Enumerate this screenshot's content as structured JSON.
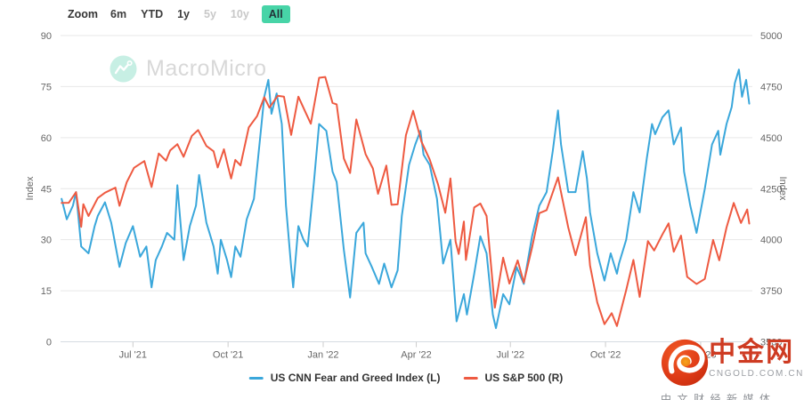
{
  "toolbar": {
    "zoom_label": "Zoom",
    "buttons": [
      {
        "label": "6m",
        "state": "normal"
      },
      {
        "label": "YTD",
        "state": "normal"
      },
      {
        "label": "1y",
        "state": "normal"
      },
      {
        "label": "5y",
        "state": "disabled"
      },
      {
        "label": "10y",
        "state": "disabled"
      },
      {
        "label": "All",
        "state": "active"
      }
    ]
  },
  "watermark": {
    "brand": "MacroMicro"
  },
  "logo": {
    "title": "中金网",
    "domain": "CNGOLD.COM.CN",
    "tagline": "中文财经新媒体"
  },
  "colors": {
    "accent_teal": "#47d4a7",
    "grid": "#e7e7e7",
    "axis_line": "#d6dbe2",
    "tick": "#cccccc",
    "label": "#666666",
    "watermark_icon": "#c7efe4",
    "watermark_text": "#d8d8d8",
    "logo_red": "#ce3b22"
  },
  "chart_data": {
    "type": "line",
    "x_range": [
      "2021-04-22",
      "2023-02-20"
    ],
    "x_ticks": [
      {
        "date": "2021-07-01",
        "label": "Jul '21"
      },
      {
        "date": "2021-10-01",
        "label": "Oct '21"
      },
      {
        "date": "2022-01-01",
        "label": "Jan '22"
      },
      {
        "date": "2022-04-01",
        "label": "Apr '22"
      },
      {
        "date": "2022-07-01",
        "label": "Jul '22"
      },
      {
        "date": "2022-10-01",
        "label": "Oct '22"
      },
      {
        "date": "2023-01-01",
        "label": "Jan '23"
      }
    ],
    "y_left": {
      "title": "Index",
      "min": 0,
      "max": 90,
      "ticks": [
        0,
        15,
        30,
        45,
        60,
        75,
        90
      ]
    },
    "y_right": {
      "title": "Index",
      "min": 3500,
      "max": 5000,
      "ticks": [
        3500,
        3750,
        4000,
        4250,
        4500,
        4750,
        5000
      ]
    },
    "grid_on": true,
    "legend_position": "bottom",
    "series": [
      {
        "name": "US CNN Fear and Greed Index (L)",
        "axis": "left",
        "color": "#3aa7db",
        "dates": [
          "2021-04-23",
          "2021-04-28",
          "2021-05-04",
          "2021-05-07",
          "2021-05-12",
          "2021-05-19",
          "2021-05-25",
          "2021-05-28",
          "2021-06-04",
          "2021-06-10",
          "2021-06-18",
          "2021-06-24",
          "2021-07-01",
          "2021-07-08",
          "2021-07-14",
          "2021-07-19",
          "2021-07-23",
          "2021-07-29",
          "2021-08-03",
          "2021-08-10",
          "2021-08-13",
          "2021-08-19",
          "2021-08-25",
          "2021-08-31",
          "2021-09-03",
          "2021-09-10",
          "2021-09-17",
          "2021-09-21",
          "2021-09-24",
          "2021-09-30",
          "2021-10-04",
          "2021-10-08",
          "2021-10-13",
          "2021-10-19",
          "2021-10-26",
          "2021-11-01",
          "2021-11-05",
          "2021-11-09",
          "2021-11-12",
          "2021-11-17",
          "2021-11-22",
          "2021-11-26",
          "2021-12-01",
          "2021-12-03",
          "2021-12-08",
          "2021-12-13",
          "2021-12-17",
          "2021-12-23",
          "2021-12-28",
          "2022-01-04",
          "2022-01-10",
          "2022-01-14",
          "2022-01-21",
          "2022-01-27",
          "2022-02-02",
          "2022-02-09",
          "2022-02-11",
          "2022-02-17",
          "2022-02-24",
          "2022-03-01",
          "2022-03-08",
          "2022-03-14",
          "2022-03-18",
          "2022-03-25",
          "2022-03-31",
          "2022-04-05",
          "2022-04-08",
          "2022-04-14",
          "2022-04-21",
          "2022-04-27",
          "2022-05-04",
          "2022-05-10",
          "2022-05-17",
          "2022-05-20",
          "2022-05-27",
          "2022-06-02",
          "2022-06-08",
          "2022-06-14",
          "2022-06-17",
          "2022-06-24",
          "2022-06-30",
          "2022-07-07",
          "2022-07-14",
          "2022-07-22",
          "2022-07-29",
          "2022-08-05",
          "2022-08-11",
          "2022-08-16",
          "2022-08-19",
          "2022-08-26",
          "2022-09-02",
          "2022-09-09",
          "2022-09-13",
          "2022-09-16",
          "2022-09-23",
          "2022-09-30",
          "2022-10-06",
          "2022-10-12",
          "2022-10-14",
          "2022-10-21",
          "2022-10-28",
          "2022-11-03",
          "2022-11-10",
          "2022-11-15",
          "2022-11-18",
          "2022-11-25",
          "2022-12-01",
          "2022-12-06",
          "2022-12-13",
          "2022-12-16",
          "2022-12-22",
          "2022-12-28",
          "2023-01-05",
          "2023-01-12",
          "2023-01-18",
          "2023-01-20",
          "2023-01-26",
          "2023-01-31",
          "2023-02-03",
          "2023-02-07",
          "2023-02-10",
          "2023-02-14",
          "2023-02-17"
        ],
        "values": [
          42,
          36,
          40,
          44,
          28,
          26,
          34,
          37,
          41,
          35,
          22,
          29,
          34,
          25,
          28,
          16,
          24,
          28,
          32,
          30,
          46,
          24,
          34,
          40,
          49,
          35,
          28,
          20,
          30,
          24,
          19,
          28,
          25,
          36,
          42,
          60,
          72,
          77,
          67,
          73,
          64,
          40,
          22,
          16,
          34,
          30,
          28,
          47,
          64,
          62,
          50,
          47,
          27,
          13,
          32,
          35,
          26,
          22,
          17,
          23,
          16,
          21,
          37,
          52,
          58,
          62,
          55,
          52,
          42,
          23,
          30,
          6,
          14,
          8,
          20,
          31,
          26,
          8,
          4,
          14,
          11,
          22,
          17,
          31,
          40,
          44,
          56,
          68,
          58,
          44,
          44,
          56,
          48,
          38,
          26,
          18,
          26,
          20,
          23,
          30,
          44,
          38,
          54,
          64,
          61,
          66,
          68,
          58,
          63,
          50,
          40,
          32,
          45,
          58,
          62,
          55,
          64,
          69,
          76,
          80,
          72,
          77,
          70
        ]
      },
      {
        "name": "US S&P 500 (R)",
        "axis": "right",
        "color": "#ee5a41",
        "dates": [
          "2021-04-23",
          "2021-04-30",
          "2021-05-07",
          "2021-05-12",
          "2021-05-14",
          "2021-05-19",
          "2021-05-28",
          "2021-06-04",
          "2021-06-14",
          "2021-06-18",
          "2021-06-25",
          "2021-07-02",
          "2021-07-12",
          "2021-07-19",
          "2021-07-26",
          "2021-08-02",
          "2021-08-06",
          "2021-08-13",
          "2021-08-19",
          "2021-08-27",
          "2021-09-02",
          "2021-09-10",
          "2021-09-17",
          "2021-09-21",
          "2021-09-27",
          "2021-10-01",
          "2021-10-04",
          "2021-10-08",
          "2021-10-13",
          "2021-10-21",
          "2021-10-29",
          "2021-11-05",
          "2021-11-10",
          "2021-11-18",
          "2021-11-24",
          "2021-12-01",
          "2021-12-08",
          "2021-12-14",
          "2021-12-20",
          "2021-12-28",
          "2022-01-03",
          "2022-01-10",
          "2022-01-14",
          "2022-01-21",
          "2022-01-27",
          "2022-02-02",
          "2022-02-11",
          "2022-02-18",
          "2022-02-23",
          "2022-03-03",
          "2022-03-08",
          "2022-03-14",
          "2022-03-22",
          "2022-03-29",
          "2022-04-06",
          "2022-04-14",
          "2022-04-22",
          "2022-04-29",
          "2022-05-04",
          "2022-05-09",
          "2022-05-12",
          "2022-05-17",
          "2022-05-19",
          "2022-05-27",
          "2022-06-02",
          "2022-06-08",
          "2022-06-16",
          "2022-06-24",
          "2022-06-30",
          "2022-07-08",
          "2022-07-14",
          "2022-07-22",
          "2022-07-29",
          "2022-08-05",
          "2022-08-16",
          "2022-08-26",
          "2022-09-02",
          "2022-09-12",
          "2022-09-16",
          "2022-09-23",
          "2022-09-30",
          "2022-10-07",
          "2022-10-12",
          "2022-10-21",
          "2022-10-28",
          "2022-11-03",
          "2022-11-11",
          "2022-11-17",
          "2022-11-25",
          "2022-12-01",
          "2022-12-06",
          "2022-12-13",
          "2022-12-19",
          "2022-12-28",
          "2023-01-05",
          "2023-01-13",
          "2023-01-19",
          "2023-01-26",
          "2023-02-02",
          "2023-02-09",
          "2023-02-15",
          "2023-02-17"
        ],
        "values": [
          4180,
          4181,
          4233,
          4063,
          4174,
          4116,
          4204,
          4230,
          4255,
          4166,
          4281,
          4352,
          4385,
          4258,
          4422,
          4387,
          4437,
          4468,
          4406,
          4509,
          4537,
          4459,
          4433,
          4354,
          4443,
          4357,
          4300,
          4391,
          4364,
          4550,
          4605,
          4698,
          4647,
          4705,
          4701,
          4513,
          4701,
          4634,
          4568,
          4793,
          4797,
          4670,
          4663,
          4398,
          4327,
          4589,
          4419,
          4349,
          4225,
          4363,
          4171,
          4173,
          4512,
          4631,
          4481,
          4393,
          4272,
          4132,
          4300,
          3991,
          3930,
          4089,
          3901,
          4158,
          4177,
          4116,
          3667,
          3912,
          3785,
          3899,
          3790,
          3962,
          4130,
          4145,
          4305,
          4058,
          3924,
          4110,
          3873,
          3693,
          3586,
          3640,
          3577,
          3753,
          3901,
          3720,
          3993,
          3947,
          4026,
          4080,
          3941,
          4020,
          3818,
          3783,
          3808,
          3999,
          3899,
          4060,
          4180,
          4082,
          4148,
          4079
        ]
      }
    ]
  }
}
